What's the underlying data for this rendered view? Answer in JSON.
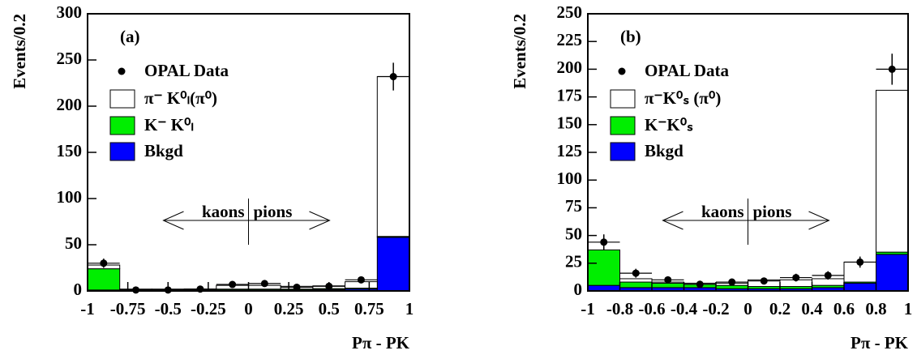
{
  "chart_data": [
    {
      "type": "histogram",
      "panel_label": "(a)",
      "ylabel": "Events/0.2",
      "xlabel": "Pπ - PK",
      "bins": [
        -1,
        -0.8,
        -0.6,
        -0.4,
        -0.2,
        0,
        0.2,
        0.4,
        0.6,
        0.8,
        1
      ],
      "xlim": [
        -1,
        1
      ],
      "xticks": [
        -1,
        -0.75,
        -0.5,
        -0.25,
        0,
        0.25,
        0.5,
        0.75,
        1
      ],
      "ylim": [
        0,
        300
      ],
      "yticks": [
        0,
        50,
        100,
        150,
        200,
        250,
        300
      ],
      "series": [
        {
          "name": "Bkgd",
          "color": "#0000ff",
          "values": [
            1,
            0.5,
            0.5,
            0.5,
            1,
            1,
            1,
            1.5,
            2,
            58
          ]
        },
        {
          "name": "K⁻ K⁰ₗ",
          "color": "#00ee00",
          "values": [
            23,
            1,
            1,
            1,
            1,
            1,
            1,
            1,
            1,
            1
          ]
        },
        {
          "name": "π⁻ K⁰ₗ(π⁰)",
          "color": "#ffffff",
          "values": [
            4,
            0.5,
            0.5,
            0.5,
            4,
            4,
            3,
            3,
            7,
            173
          ]
        }
      ],
      "data": {
        "name": "OPAL Data",
        "x": [
          -0.9,
          -0.7,
          -0.5,
          -0.3,
          -0.1,
          0.1,
          0.3,
          0.5,
          0.7,
          0.9
        ],
        "values": [
          30,
          1,
          1,
          2,
          7,
          8,
          4,
          5,
          12,
          232
        ],
        "errors": [
          5,
          1,
          1,
          1.4,
          2.6,
          2.8,
          2,
          2.2,
          3.5,
          15
        ]
      },
      "annotations": [
        "kaons",
        "pions"
      ]
    },
    {
      "type": "histogram",
      "panel_label": "(b)",
      "ylabel": "Events/0.2",
      "xlabel": "Pπ - PK",
      "bins": [
        -1,
        -0.8,
        -0.6,
        -0.4,
        -0.2,
        0,
        0.2,
        0.4,
        0.6,
        0.8,
        1
      ],
      "xlim": [
        -1,
        1
      ],
      "xticks": [
        -1,
        -0.8,
        -0.6,
        -0.4,
        -0.2,
        0,
        0.2,
        0.4,
        0.6,
        0.8,
        1
      ],
      "ylim": [
        0,
        250
      ],
      "yticks": [
        0,
        25,
        50,
        75,
        100,
        125,
        150,
        175,
        200,
        225,
        250
      ],
      "series": [
        {
          "name": "Bkgd",
          "color": "#0000ff",
          "values": [
            5,
            3,
            3,
            3,
            2,
            2,
            2,
            3,
            7,
            33
          ]
        },
        {
          "name": "K⁻K⁰ₛ",
          "color": "#00ee00",
          "values": [
            32,
            5,
            4,
            3,
            3,
            2,
            2,
            2,
            1,
            2
          ]
        },
        {
          "name": "π⁻K⁰ₛ (π⁰)",
          "color": "#ffffff",
          "values": [
            0,
            3,
            1,
            1,
            2,
            6,
            6,
            6,
            18,
            146
          ]
        }
      ],
      "data": {
        "name": "OPAL Data",
        "x": [
          -0.9,
          -0.7,
          -0.5,
          -0.3,
          -0.1,
          0.1,
          0.3,
          0.5,
          0.7,
          0.9
        ],
        "values": [
          44,
          16,
          10,
          6,
          8,
          9,
          12,
          14,
          26,
          200
        ],
        "errors": [
          7,
          4,
          3.2,
          2.5,
          2.8,
          3,
          3.5,
          3.8,
          5,
          14
        ]
      },
      "annotations": [
        "kaons",
        "pions"
      ]
    }
  ]
}
